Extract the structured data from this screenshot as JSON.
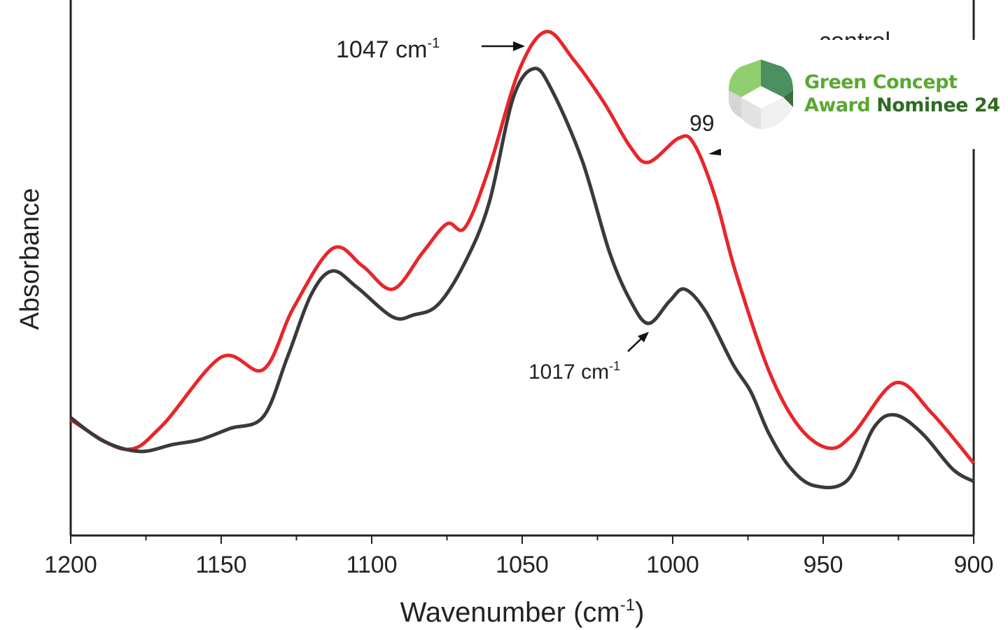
{
  "chart_data": {
    "type": "line",
    "title": "",
    "xlabel": "Wavenumber (cm",
    "xlabel_sup": "-1",
    "xlabel_end": ")",
    "ylabel": "Absorbance",
    "xlim": [
      1200,
      900
    ],
    "ylim": [
      0,
      1
    ],
    "x_reversed": true,
    "x_ticks": [
      1200,
      1150,
      1100,
      1050,
      1000,
      950,
      900
    ],
    "y_ticks_shown": false,
    "grid": false,
    "series": [
      {
        "color": "#e8262b",
        "points": [
          [
            1200,
            0.216
          ],
          [
            1182,
            0.161
          ],
          [
            1170,
            0.203
          ],
          [
            1150,
            0.333
          ],
          [
            1136,
            0.31
          ],
          [
            1126,
            0.425
          ],
          [
            1113,
            0.536
          ],
          [
            1103,
            0.503
          ],
          [
            1093,
            0.46
          ],
          [
            1083,
            0.529
          ],
          [
            1075,
            0.582
          ],
          [
            1069,
            0.575
          ],
          [
            1061,
            0.686
          ],
          [
            1051,
            0.869
          ],
          [
            1042,
            0.941
          ],
          [
            1033,
            0.889
          ],
          [
            1023,
            0.81
          ],
          [
            1014,
            0.725
          ],
          [
            1008,
            0.697
          ],
          [
            998,
            0.742
          ],
          [
            993,
            0.732
          ],
          [
            986,
            0.634
          ],
          [
            979,
            0.49
          ],
          [
            968,
            0.307
          ],
          [
            958,
            0.203
          ],
          [
            948,
            0.163
          ],
          [
            940,
            0.19
          ],
          [
            926,
            0.285
          ],
          [
            914,
            0.229
          ],
          [
            900,
            0.135
          ]
        ]
      },
      {
        "color": "#3a3a3a",
        "points": [
          [
            1200,
            0.22
          ],
          [
            1189,
            0.176
          ],
          [
            1177,
            0.157
          ],
          [
            1166,
            0.17
          ],
          [
            1157,
            0.179
          ],
          [
            1147,
            0.2
          ],
          [
            1136,
            0.222
          ],
          [
            1128,
            0.333
          ],
          [
            1120,
            0.451
          ],
          [
            1113,
            0.494
          ],
          [
            1105,
            0.464
          ],
          [
            1093,
            0.408
          ],
          [
            1086,
            0.412
          ],
          [
            1078,
            0.431
          ],
          [
            1069,
            0.51
          ],
          [
            1061,
            0.621
          ],
          [
            1053,
            0.817
          ],
          [
            1046,
            0.872
          ],
          [
            1040,
            0.83
          ],
          [
            1030,
            0.699
          ],
          [
            1021,
            0.529
          ],
          [
            1014,
            0.438
          ],
          [
            1008,
            0.396
          ],
          [
            1001,
            0.438
          ],
          [
            996,
            0.46
          ],
          [
            989,
            0.418
          ],
          [
            980,
            0.32
          ],
          [
            974,
            0.268
          ],
          [
            968,
            0.19
          ],
          [
            961,
            0.127
          ],
          [
            953,
            0.093
          ],
          [
            942,
            0.103
          ],
          [
            933,
            0.203
          ],
          [
            926,
            0.225
          ],
          [
            917,
            0.19
          ],
          [
            907,
            0.124
          ],
          [
            900,
            0.101
          ]
        ]
      }
    ],
    "annotations": [
      {
        "text": "1047 cm",
        "sup": "-1"
      },
      {
        "text": "1017 cm",
        "sup": "-1"
      },
      {
        "text": "99"
      }
    ],
    "legend_partial": "control"
  },
  "badge": {
    "line1": "Green  Concept",
    "line2a": "Award",
    "line2b": "Nominee 24",
    "colors": {
      "light": "#5aa832",
      "dark": "#2f6b22"
    }
  }
}
